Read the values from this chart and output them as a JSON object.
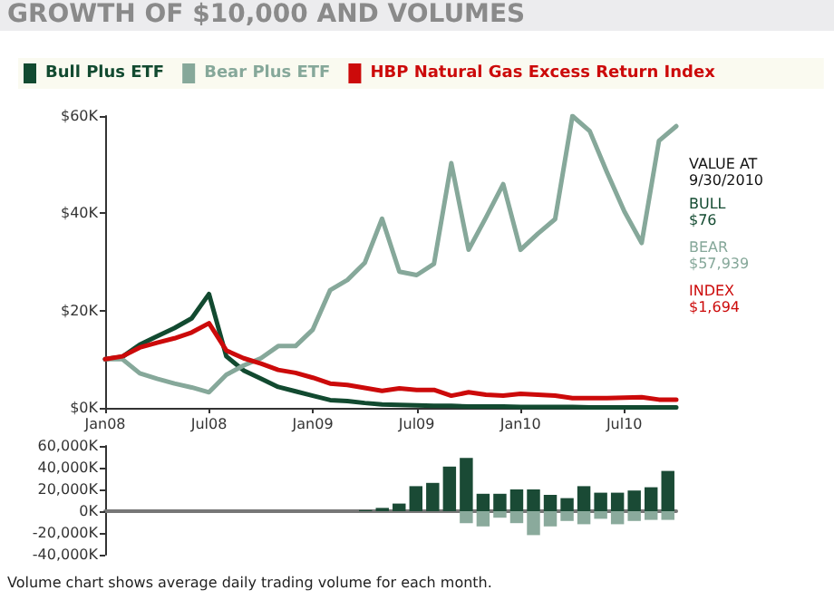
{
  "chart_data": [
    {
      "type": "line",
      "title": "GROWTH OF $10,000 AND VOLUMES",
      "categories": [
        "Jan08",
        null,
        null,
        null,
        null,
        null,
        "Jul08",
        null,
        null,
        null,
        null,
        null,
        "Jan09",
        null,
        null,
        null,
        null,
        null,
        "Jul09",
        null,
        null,
        null,
        null,
        null,
        "Jan10",
        null,
        null,
        null,
        null,
        null,
        "Jul10",
        null,
        null,
        null
      ],
      "series": [
        {
          "name": "Bull Plus ETF",
          "color": "#124a30",
          "values": [
            10,
            10.5,
            13,
            14.7,
            16.4,
            18.4,
            23.4,
            10.6,
            7.7,
            6,
            4.3,
            3.4,
            2.5,
            1.6,
            1.4,
            1,
            0.7,
            0.6,
            0.5,
            0.4,
            0.4,
            0.3,
            0.3,
            0.3,
            0.2,
            0.2,
            0.2,
            0.2,
            0.1,
            0.1,
            0.1,
            0.1,
            0.1,
            0.1
          ]
        },
        {
          "name": "Bear Plus ETF",
          "color": "#86a89a",
          "values": [
            10,
            10,
            7.1,
            6,
            5,
            4.2,
            3.2,
            6.8,
            8.7,
            10.2,
            12.7,
            12.7,
            16.1,
            24.2,
            26.3,
            29.8,
            38.9,
            28,
            27.3,
            29.6,
            50.3,
            32.5,
            39.1,
            46,
            32.5,
            35.8,
            38.8,
            60,
            56.9,
            48.4,
            40.4,
            33.9,
            54.9,
            57.9
          ]
        },
        {
          "name": "HBP Natural Gas Excess Return Index",
          "color": "#cc0a0a",
          "values": [
            10,
            10.6,
            12.4,
            13.4,
            14.3,
            15.5,
            17.4,
            11.8,
            10.2,
            9.1,
            7.8,
            7.2,
            6.2,
            5,
            4.7,
            4.1,
            3.5,
            4,
            3.7,
            3.7,
            2.5,
            3.2,
            2.7,
            2.5,
            2.9,
            2.7,
            2.5,
            2,
            2,
            2,
            2.1,
            2.2,
            1.7,
            1.7
          ]
        }
      ],
      "ylim": [
        0,
        60
      ],
      "yticks": [
        {
          "value": 0,
          "label": "$0K"
        },
        {
          "value": 20,
          "label": "$20K"
        },
        {
          "value": 40,
          "label": "$40K"
        },
        {
          "value": 60,
          "label": "$60K"
        }
      ],
      "legend": "top",
      "grid": false,
      "marker": "none",
      "annotations": [
        "VALUE AT\n9/30/2010",
        "BULL\n$76",
        "BEAR\n$57,939",
        "INDEX\n$1,694"
      ]
    },
    {
      "type": "bar",
      "stacked": true,
      "tick_labels": "y",
      "categories": [
        null,
        null,
        null,
        null,
        null,
        null,
        null,
        null,
        null,
        null,
        null,
        null,
        null,
        null,
        null,
        null,
        null,
        null,
        null,
        null,
        null,
        null,
        null,
        null,
        null,
        null,
        null,
        null,
        null,
        null,
        null,
        null,
        null,
        null
      ],
      "series": [
        {
          "color": "#1a4a35",
          "values": [
            null,
            null,
            null,
            null,
            null,
            null,
            null,
            null,
            null,
            null,
            null,
            null,
            null,
            null,
            null,
            1000,
            3000,
            7000,
            23000,
            26000,
            41000,
            49000,
            16000,
            16000,
            20000,
            20000,
            15000,
            12000,
            23000,
            17000,
            17000,
            19000,
            22000,
            37000
          ]
        },
        {
          "color": "#8aaa9c",
          "values": [
            null,
            null,
            null,
            null,
            null,
            null,
            null,
            null,
            null,
            null,
            null,
            null,
            null,
            null,
            null,
            null,
            null,
            null,
            null,
            null,
            null,
            -11000,
            -14000,
            -6000,
            -11000,
            -22000,
            -14000,
            -9000,
            -12000,
            -7000,
            -12000,
            -9000,
            -8000,
            -8000
          ]
        }
      ],
      "ylim": [
        -40000,
        60000
      ],
      "yticks": [
        {
          "value": -40000,
          "label": "-40,000K"
        },
        {
          "value": -20000,
          "label": "-20,000K"
        },
        {
          "value": 0,
          "label": "0K"
        },
        {
          "value": 20000,
          "label": "20,000K"
        },
        {
          "value": 40000,
          "label": "40,000K"
        },
        {
          "value": 60000,
          "label": "60,000K"
        }
      ],
      "annotations": [
        "Volume chart shows average daily trading volume for each month."
      ]
    }
  ]
}
